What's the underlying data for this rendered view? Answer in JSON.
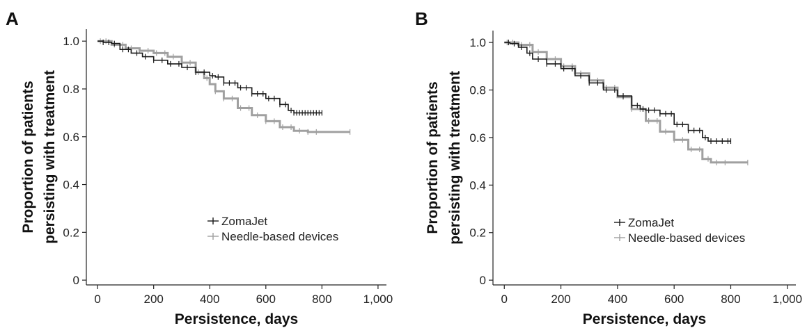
{
  "chart_data": [
    {
      "type": "line",
      "panel": "A",
      "xlabel": "Persistence, days",
      "ylabel_lines": [
        "Proportion of patients",
        "persisting with treatment"
      ],
      "xlim": [
        -40,
        1030
      ],
      "ylim": [
        -0.02,
        1.05
      ],
      "x_ticks": [
        0,
        200,
        400,
        600,
        800,
        1000
      ],
      "x_tick_labels": [
        "0",
        "200",
        "400",
        "600",
        "800",
        "1,000"
      ],
      "y_ticks": [
        0,
        0.2,
        0.4,
        0.6,
        0.8,
        1.0
      ],
      "y_tick_labels": [
        "0",
        "0.2",
        "0.4",
        "0.6",
        "0.8",
        "1.0"
      ],
      "legend_position": "center-right",
      "series": [
        {
          "name": "ZomaJet",
          "color": "#1a1a1a",
          "points": [
            [
              0,
              1.0
            ],
            [
              20,
              0.995
            ],
            [
              50,
              0.99
            ],
            [
              80,
              0.965
            ],
            [
              120,
              0.95
            ],
            [
              160,
              0.935
            ],
            [
              200,
              0.92
            ],
            [
              250,
              0.905
            ],
            [
              300,
              0.89
            ],
            [
              350,
              0.87
            ],
            [
              400,
              0.855
            ],
            [
              420,
              0.85
            ],
            [
              450,
              0.825
            ],
            [
              500,
              0.805
            ],
            [
              550,
              0.78
            ],
            [
              600,
              0.76
            ],
            [
              650,
              0.735
            ],
            [
              680,
              0.71
            ],
            [
              700,
              0.7
            ],
            [
              800,
              0.7
            ]
          ],
          "censor_x": [
            20,
            40,
            60,
            90,
            110,
            140,
            170,
            200,
            230,
            260,
            290,
            320,
            350,
            380,
            410,
            430,
            450,
            470,
            490,
            510,
            530,
            550,
            570,
            590,
            610,
            630,
            650,
            670,
            690,
            700,
            710,
            720,
            730,
            740,
            750,
            760,
            770,
            780,
            790,
            800
          ]
        },
        {
          "name": "Needle-based devices",
          "color": "#a0a0a0",
          "points": [
            [
              0,
              1.0
            ],
            [
              50,
              0.985
            ],
            [
              100,
              0.97
            ],
            [
              150,
              0.96
            ],
            [
              200,
              0.95
            ],
            [
              250,
              0.935
            ],
            [
              300,
              0.91
            ],
            [
              350,
              0.87
            ],
            [
              380,
              0.845
            ],
            [
              400,
              0.82
            ],
            [
              420,
              0.79
            ],
            [
              450,
              0.76
            ],
            [
              500,
              0.72
            ],
            [
              550,
              0.69
            ],
            [
              600,
              0.665
            ],
            [
              650,
              0.64
            ],
            [
              700,
              0.625
            ],
            [
              750,
              0.62
            ],
            [
              790,
              0.62
            ],
            [
              900,
              0.62
            ]
          ],
          "censor_x": [
            10,
            30,
            60,
            90,
            120,
            150,
            180,
            210,
            240,
            270,
            300,
            330,
            360,
            390,
            420,
            450,
            480,
            510,
            540,
            570,
            600,
            630,
            660,
            690,
            720,
            750,
            780,
            900
          ]
        }
      ]
    },
    {
      "type": "line",
      "panel": "B",
      "xlabel": "Persistence, days",
      "ylabel_lines": [
        "Proportion of patients",
        "persisting with treatment"
      ],
      "xlim": [
        -40,
        1030
      ],
      "ylim": [
        -0.02,
        1.05
      ],
      "x_ticks": [
        0,
        200,
        400,
        600,
        800,
        1000
      ],
      "x_tick_labels": [
        "0",
        "200",
        "400",
        "600",
        "800",
        "1,000"
      ],
      "y_ticks": [
        0,
        0.2,
        0.4,
        0.6,
        0.8,
        1.0
      ],
      "y_tick_labels": [
        "0",
        "0.2",
        "0.4",
        "0.6",
        "0.8",
        "1.0"
      ],
      "legend_position": "center-right",
      "series": [
        {
          "name": "ZomaJet",
          "color": "#1a1a1a",
          "points": [
            [
              0,
              1.0
            ],
            [
              20,
              0.995
            ],
            [
              50,
              0.98
            ],
            [
              80,
              0.955
            ],
            [
              100,
              0.93
            ],
            [
              150,
              0.91
            ],
            [
              200,
              0.89
            ],
            [
              250,
              0.86
            ],
            [
              300,
              0.83
            ],
            [
              350,
              0.8
            ],
            [
              400,
              0.775
            ],
            [
              450,
              0.735
            ],
            [
              480,
              0.72
            ],
            [
              500,
              0.715
            ],
            [
              550,
              0.7
            ],
            [
              600,
              0.655
            ],
            [
              650,
              0.63
            ],
            [
              700,
              0.6
            ],
            [
              720,
              0.585
            ],
            [
              800,
              0.585
            ]
          ],
          "censor_x": [
            15,
            35,
            60,
            90,
            120,
            150,
            180,
            210,
            240,
            270,
            300,
            330,
            360,
            390,
            420,
            450,
            470,
            490,
            510,
            530,
            550,
            570,
            590,
            610,
            630,
            650,
            670,
            690,
            710,
            730,
            750,
            770,
            790,
            800
          ]
        },
        {
          "name": "Needle-based devices",
          "color": "#a0a0a0",
          "points": [
            [
              0,
              1.0
            ],
            [
              50,
              0.99
            ],
            [
              100,
              0.96
            ],
            [
              150,
              0.93
            ],
            [
              200,
              0.9
            ],
            [
              250,
              0.87
            ],
            [
              300,
              0.84
            ],
            [
              350,
              0.81
            ],
            [
              400,
              0.77
            ],
            [
              450,
              0.72
            ],
            [
              500,
              0.67
            ],
            [
              550,
              0.625
            ],
            [
              600,
              0.59
            ],
            [
              650,
              0.55
            ],
            [
              700,
              0.51
            ],
            [
              730,
              0.495
            ],
            [
              790,
              0.495
            ],
            [
              860,
              0.495
            ]
          ],
          "censor_x": [
            10,
            30,
            60,
            90,
            120,
            150,
            180,
            210,
            240,
            270,
            300,
            330,
            360,
            390,
            420,
            450,
            480,
            510,
            540,
            570,
            600,
            630,
            660,
            690,
            720,
            750,
            780,
            860
          ]
        }
      ]
    }
  ]
}
